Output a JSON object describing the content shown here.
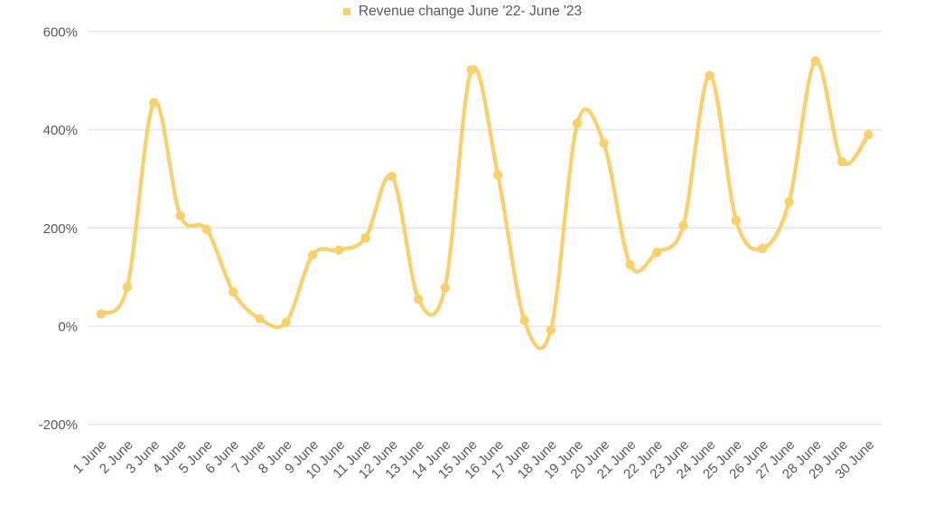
{
  "legend": {
    "label": "Revenue change June '22- June '23"
  },
  "colors": {
    "series": "#F8D06E",
    "grid": "#E2E2E2",
    "axis_text": "#595959",
    "background": "#FFFFFF"
  },
  "chart_data": {
    "type": "line",
    "title": "",
    "legend_entries": [
      "Revenue change June '22- June '23"
    ],
    "legend_position": "top-center",
    "categories": [
      "1 June",
      "2 June",
      "3 June",
      "4 June",
      "5 June",
      "6 June",
      "7 June",
      "8 June",
      "9 June",
      "10 June",
      "11 June",
      "12 June",
      "13 June",
      "14 June",
      "15 June",
      "16 June",
      "17 June",
      "18 June",
      "19 June",
      "20 June",
      "21 June",
      "22 June",
      "23 June",
      "24 June",
      "25 June",
      "26 June",
      "27 June",
      "28 June",
      "29 June",
      "30 June"
    ],
    "series": [
      {
        "name": "Revenue change June '22- June '23",
        "values": [
          25,
          80,
          455,
          225,
          197,
          70,
          15,
          8,
          145,
          155,
          180,
          305,
          55,
          78,
          522,
          308,
          12,
          -8,
          413,
          373,
          125,
          150,
          205,
          510,
          215,
          158,
          253,
          540,
          335,
          390
        ]
      }
    ],
    "xlabel": "",
    "ylabel": "",
    "ylim": [
      -200,
      600
    ],
    "y_ticks": [
      600,
      400,
      200,
      0,
      -200
    ],
    "y_tick_labels": [
      "600%",
      "400%",
      "200%",
      "0%",
      "-200%"
    ],
    "x_tick_rotation_deg": -45,
    "grid": true,
    "marker": "circle",
    "smooth": true,
    "unit": "%"
  }
}
